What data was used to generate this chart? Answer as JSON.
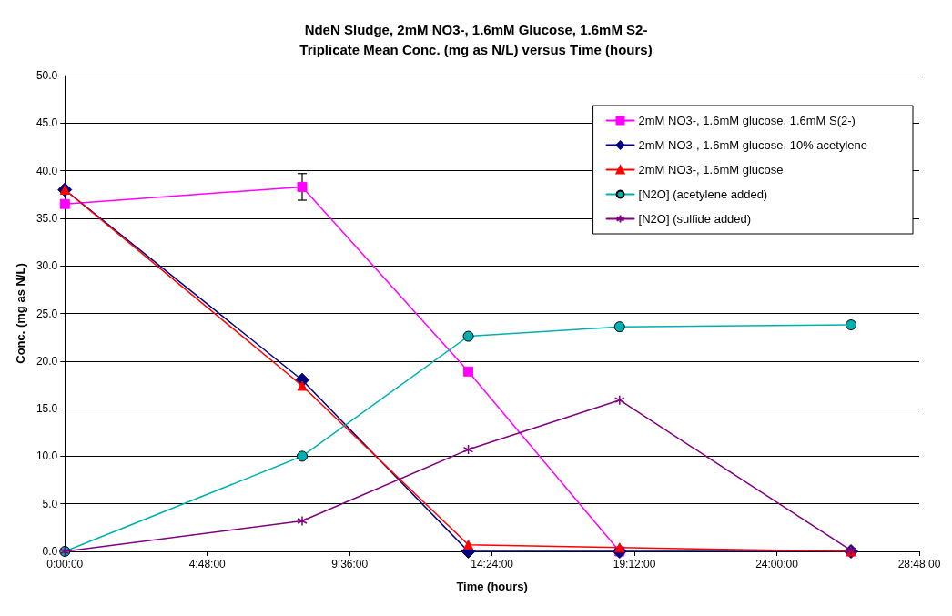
{
  "chart_data": {
    "type": "line",
    "title": "NdeN Sludge, 2mM NO3-, 1.6mM Glucose, 1.6mM S2-\nTriplicate Mean Conc. (mg as N/L) versus Time (hours)",
    "xlabel": "Time (hours)",
    "ylabel": "Conc. (mg as N/L)",
    "x": [
      0,
      8,
      13.6,
      18.7,
      26.5
    ],
    "series": [
      {
        "name": "2mM NO3-, 1.6mM glucose, 1.6mM S(2-)",
        "color": "#ff00ff",
        "marker": "square",
        "values": [
          36.5,
          38.3,
          18.9,
          0,
          null
        ],
        "errors": [
          null,
          1.4,
          null,
          null,
          null
        ]
      },
      {
        "name": "2mM NO3-, 1.6mM glucose, 10% acetylene",
        "color": "#000080",
        "marker": "diamond",
        "values": [
          38.0,
          18.0,
          0,
          0,
          0
        ]
      },
      {
        "name": "2mM NO3-, 1.6mM glucose",
        "color": "#ff0000",
        "marker": "triangle",
        "values": [
          38.0,
          17.4,
          0.7,
          0.4,
          0
        ]
      },
      {
        "name": "[N2O] (acetylene added)",
        "color": "#00b0b0",
        "marker": "circle",
        "values": [
          0,
          10.0,
          22.6,
          23.6,
          23.8
        ]
      },
      {
        "name": "[N2O] (sulfide added)",
        "color": "#800080",
        "marker": "star",
        "values": [
          0,
          3.2,
          10.7,
          15.9,
          0.1
        ]
      }
    ],
    "xlim": [
      0,
      28.8
    ],
    "xticks": [
      {
        "value": 0,
        "label": "0:00:00"
      },
      {
        "value": 4.8,
        "label": "4:48:00"
      },
      {
        "value": 9.6,
        "label": "9:36:00"
      },
      {
        "value": 14.4,
        "label": "14:24:00"
      },
      {
        "value": 19.2,
        "label": "19:12:00"
      },
      {
        "value": 24,
        "label": "24:00:00"
      },
      {
        "value": 28.8,
        "label": "28:48:00"
      }
    ],
    "ylim": [
      0,
      50
    ],
    "yticks": [
      {
        "value": 0,
        "label": "0.0"
      },
      {
        "value": 5,
        "label": "5.0"
      },
      {
        "value": 10,
        "label": "10.0"
      },
      {
        "value": 15,
        "label": "15.0"
      },
      {
        "value": 20,
        "label": "20.0"
      },
      {
        "value": 25,
        "label": "25.0"
      },
      {
        "value": 30,
        "label": "30.0"
      },
      {
        "value": 35,
        "label": "35.0"
      },
      {
        "value": 40,
        "label": "40.0"
      },
      {
        "value": 45,
        "label": "45.0"
      },
      {
        "value": 50,
        "label": "50.0"
      }
    ],
    "grid": "y",
    "legend": "top right",
    "line_style": "solid"
  }
}
